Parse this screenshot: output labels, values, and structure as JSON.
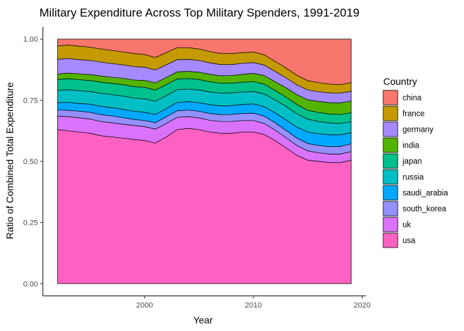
{
  "chart_data": {
    "type": "area",
    "stacked": true,
    "normalized": true,
    "title": "Military Expenditure Across Top Military Spenders, 1991-2019",
    "xlabel": "Year",
    "ylabel": "Ratio of Combined Total Expenditure",
    "xlim": [
      1992,
      2019
    ],
    "ylim": [
      0,
      1
    ],
    "x_ticks": [
      2000,
      2010,
      2020
    ],
    "y_ticks": [
      0.0,
      0.25,
      0.5,
      0.75,
      1.0
    ],
    "y_tick_labels": [
      "0.00",
      "0.25",
      "0.50",
      "0.75",
      "1.00"
    ],
    "legend": {
      "title": "Country",
      "position": "right"
    },
    "grid": false,
    "x": [
      1992,
      1993,
      1994,
      1995,
      1996,
      1997,
      1998,
      1999,
      2000,
      2001,
      2002,
      2003,
      2004,
      2005,
      2006,
      2007,
      2008,
      2009,
      2010,
      2011,
      2012,
      2013,
      2014,
      2015,
      2016,
      2017,
      2018,
      2019
    ],
    "series": [
      {
        "name": "usa",
        "color": "#FF61C3",
        "values": [
          0.63,
          0.625,
          0.62,
          0.615,
          0.605,
          0.6,
          0.595,
          0.59,
          0.585,
          0.575,
          0.6,
          0.63,
          0.635,
          0.63,
          0.62,
          0.615,
          0.615,
          0.62,
          0.62,
          0.61,
          0.585,
          0.555,
          0.525,
          0.505,
          0.5,
          0.495,
          0.495,
          0.505
        ]
      },
      {
        "name": "uk",
        "color": "#DB72FB",
        "values": [
          0.055,
          0.058,
          0.058,
          0.058,
          0.058,
          0.058,
          0.057,
          0.057,
          0.057,
          0.057,
          0.055,
          0.05,
          0.048,
          0.048,
          0.048,
          0.048,
          0.048,
          0.047,
          0.047,
          0.045,
          0.043,
          0.042,
          0.04,
          0.038,
          0.035,
          0.035,
          0.035,
          0.035
        ]
      },
      {
        "name": "south_korea",
        "color": "#9590FF",
        "values": [
          0.025,
          0.026,
          0.027,
          0.028,
          0.028,
          0.028,
          0.027,
          0.025,
          0.025,
          0.026,
          0.027,
          0.027,
          0.027,
          0.027,
          0.028,
          0.028,
          0.029,
          0.029,
          0.03,
          0.03,
          0.03,
          0.03,
          0.03,
          0.03,
          0.03,
          0.03,
          0.031,
          0.032
        ]
      },
      {
        "name": "saudi_arabia",
        "color": "#00A9FF",
        "values": [
          0.03,
          0.032,
          0.032,
          0.033,
          0.034,
          0.034,
          0.034,
          0.033,
          0.034,
          0.034,
          0.034,
          0.034,
          0.034,
          0.035,
          0.036,
          0.036,
          0.036,
          0.037,
          0.038,
          0.039,
          0.04,
          0.043,
          0.045,
          0.047,
          0.048,
          0.049,
          0.048,
          0.045
        ]
      },
      {
        "name": "russia",
        "color": "#00BFC4",
        "values": [
          0.05,
          0.052,
          0.052,
          0.052,
          0.053,
          0.053,
          0.054,
          0.054,
          0.055,
          0.054,
          0.053,
          0.052,
          0.052,
          0.052,
          0.052,
          0.052,
          0.052,
          0.051,
          0.051,
          0.052,
          0.053,
          0.055,
          0.055,
          0.052,
          0.05,
          0.048,
          0.046,
          0.045
        ]
      },
      {
        "name": "japan",
        "color": "#00C08B",
        "values": [
          0.045,
          0.045,
          0.045,
          0.045,
          0.046,
          0.046,
          0.047,
          0.047,
          0.047,
          0.046,
          0.045,
          0.044,
          0.043,
          0.043,
          0.042,
          0.041,
          0.04,
          0.04,
          0.04,
          0.04,
          0.039,
          0.038,
          0.038,
          0.037,
          0.037,
          0.037,
          0.037,
          0.037
        ]
      },
      {
        "name": "india",
        "color": "#53B400",
        "values": [
          0.022,
          0.023,
          0.024,
          0.024,
          0.025,
          0.025,
          0.026,
          0.027,
          0.028,
          0.029,
          0.029,
          0.029,
          0.029,
          0.03,
          0.03,
          0.03,
          0.031,
          0.032,
          0.034,
          0.035,
          0.036,
          0.038,
          0.04,
          0.043,
          0.045,
          0.046,
          0.047,
          0.048
        ]
      },
      {
        "name": "germany",
        "color": "#A58AFF",
        "values": [
          0.06,
          0.06,
          0.058,
          0.058,
          0.057,
          0.056,
          0.055,
          0.055,
          0.054,
          0.053,
          0.052,
          0.05,
          0.049,
          0.048,
          0.047,
          0.046,
          0.045,
          0.045,
          0.044,
          0.043,
          0.042,
          0.041,
          0.04,
          0.04,
          0.04,
          0.04,
          0.04,
          0.04
        ]
      },
      {
        "name": "france",
        "color": "#C49A00",
        "values": [
          0.055,
          0.055,
          0.055,
          0.054,
          0.054,
          0.054,
          0.053,
          0.053,
          0.052,
          0.051,
          0.05,
          0.049,
          0.048,
          0.047,
          0.046,
          0.045,
          0.045,
          0.044,
          0.043,
          0.042,
          0.041,
          0.04,
          0.039,
          0.038,
          0.037,
          0.036,
          0.035,
          0.035
        ]
      },
      {
        "name": "china",
        "color": "#F8766D",
        "values": [
          0.028,
          0.024,
          0.029,
          0.033,
          0.04,
          0.046,
          0.052,
          0.059,
          0.063,
          0.075,
          0.055,
          0.035,
          0.035,
          0.04,
          0.051,
          0.059,
          0.059,
          0.055,
          0.053,
          0.064,
          0.091,
          0.118,
          0.148,
          0.17,
          0.178,
          0.184,
          0.186,
          0.178
        ]
      }
    ]
  }
}
